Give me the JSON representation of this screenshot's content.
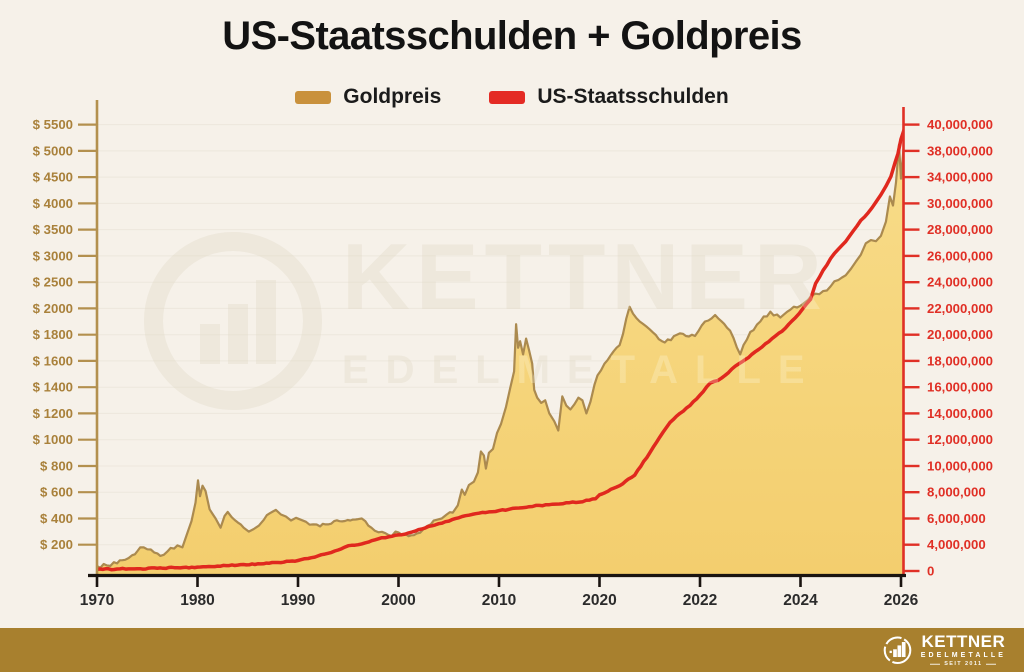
{
  "title": "US-Staatsschulden + Goldpreis",
  "palette": {
    "background": "#F6F1E9",
    "gold_accent": "#C9913C",
    "red_accent": "#E0281E",
    "footer_bar": "#A8802E"
  },
  "legend": [
    {
      "label": "Goldpreis",
      "color": "#C9913C"
    },
    {
      "label": "US-Staatsschulden",
      "color": "#E42B24"
    }
  ],
  "watermark": {
    "line1": "KETTNER",
    "line2": "EDELMETALLE"
  },
  "footer": {
    "brand": "KETTNER",
    "sub": "EDELMETALLE",
    "since": "SEIT 2011"
  },
  "chart_data": {
    "type": "area",
    "title": "US-Staatsschulden + Goldpreis",
    "grid": "faint-horizontal",
    "legend_position": "top-center",
    "x_axis": {
      "ticks": [
        "1970",
        "1980",
        "1990",
        "2000",
        "2010",
        "2020",
        "2022",
        "2024",
        "2026"
      ],
      "tick_years": [
        1970,
        1980,
        1990,
        2000,
        2010,
        2020,
        2022,
        2024,
        2026
      ],
      "label_color": "#2B2B2B"
    },
    "left_axis": {
      "color": "#A9813B",
      "tick_labels_top_to_bottom": [
        "$ 5500",
        "$ 5000",
        "$ 4500",
        "$ 4000",
        "$ 3500",
        "$ 3000",
        "$ 2500",
        "$ 2000",
        "$ 1800",
        "$ 1600",
        "$ 1400",
        "$ 1200",
        "$ 1000",
        "$ 800",
        "$ 600",
        "$ 400",
        "$ 200"
      ],
      "value_stops": [
        0,
        200,
        400,
        600,
        800,
        1000,
        1200,
        1400,
        1600,
        1800,
        2000,
        2500,
        3000,
        3500,
        4000,
        4500,
        5000,
        5500
      ]
    },
    "right_axis": {
      "color": "#E03026",
      "tick_labels_top_to_bottom": [
        "40,000,000",
        "38,000,000",
        "34,000,000",
        "30,000,000",
        "28,000,000",
        "26,000,000",
        "24,000,000",
        "22,000,000",
        "20,000,000",
        "18,000,000",
        "16,000,000",
        "14,000,000",
        "12,000,000",
        "10,000,000",
        "8,000,000",
        "6,000,000",
        "4,000,000",
        "0"
      ],
      "value_stops": [
        0,
        4000000,
        6000000,
        8000000,
        10000000,
        12000000,
        14000000,
        16000000,
        18000000,
        20000000,
        22000000,
        24000000,
        26000000,
        28000000,
        30000000,
        34000000,
        38000000,
        40000000
      ]
    },
    "series": [
      {
        "name": "Goldpreis",
        "axis": "left",
        "style": "area",
        "line_color": "#AB8A4F",
        "fill_top": "#F8DC89",
        "fill_bottom": "#F3CE6E",
        "points": [
          [
            1970,
            37
          ],
          [
            1971,
            42
          ],
          [
            1972,
            58
          ],
          [
            1972.8,
            85
          ],
          [
            1973.5,
            120
          ],
          [
            1974.3,
            180
          ],
          [
            1975,
            165
          ],
          [
            1975.7,
            140
          ],
          [
            1976.3,
            115
          ],
          [
            1977,
            148
          ],
          [
            1978,
            195
          ],
          [
            1978.5,
            180
          ],
          [
            1979,
            290
          ],
          [
            1979.4,
            380
          ],
          [
            1979.8,
            520
          ],
          [
            1980.05,
            690
          ],
          [
            1980.25,
            570
          ],
          [
            1980.5,
            650
          ],
          [
            1980.8,
            610
          ],
          [
            1981.2,
            470
          ],
          [
            1981.8,
            400
          ],
          [
            1982.3,
            330
          ],
          [
            1982.7,
            420
          ],
          [
            1983,
            450
          ],
          [
            1983.4,
            410
          ],
          [
            1984,
            370
          ],
          [
            1984.6,
            330
          ],
          [
            1985.1,
            300
          ],
          [
            1985.6,
            320
          ],
          [
            1986.1,
            345
          ],
          [
            1986.6,
            390
          ],
          [
            1987.2,
            440
          ],
          [
            1987.8,
            465
          ],
          [
            1988.3,
            430
          ],
          [
            1988.8,
            415
          ],
          [
            1989.3,
            385
          ],
          [
            1989.8,
            405
          ],
          [
            1990.3,
            390
          ],
          [
            1990.8,
            375
          ],
          [
            1991.5,
            355
          ],
          [
            1992.2,
            340
          ],
          [
            1993,
            355
          ],
          [
            1993.6,
            380
          ],
          [
            1994.4,
            378
          ],
          [
            1995.2,
            385
          ],
          [
            1996,
            395
          ],
          [
            1996.7,
            380
          ],
          [
            1997.3,
            330
          ],
          [
            1998,
            295
          ],
          [
            1998.7,
            288
          ],
          [
            1999.3,
            265
          ],
          [
            1999.7,
            300
          ],
          [
            2000.3,
            278
          ],
          [
            2001,
            265
          ],
          [
            2001.8,
            285
          ],
          [
            2002.5,
            320
          ],
          [
            2003.2,
            355
          ],
          [
            2003.8,
            390
          ],
          [
            2004.3,
            400
          ],
          [
            2004.8,
            430
          ],
          [
            2005.4,
            445
          ],
          [
            2005.9,
            500
          ],
          [
            2006.3,
            620
          ],
          [
            2006.6,
            580
          ],
          [
            2007,
            655
          ],
          [
            2007.5,
            680
          ],
          [
            2007.9,
            750
          ],
          [
            2008.2,
            910
          ],
          [
            2008.5,
            880
          ],
          [
            2008.7,
            780
          ],
          [
            2009,
            900
          ],
          [
            2009.4,
            930
          ],
          [
            2009.8,
            1050
          ],
          [
            2010.2,
            1120
          ],
          [
            2010.7,
            1250
          ],
          [
            2011.1,
            1390
          ],
          [
            2011.5,
            1520
          ],
          [
            2011.7,
            1880
          ],
          [
            2011.9,
            1700
          ],
          [
            2012.1,
            1750
          ],
          [
            2012.4,
            1650
          ],
          [
            2012.7,
            1770
          ],
          [
            2013,
            1680
          ],
          [
            2013.3,
            1580
          ],
          [
            2013.5,
            1380
          ],
          [
            2013.8,
            1320
          ],
          [
            2014.2,
            1280
          ],
          [
            2014.6,
            1300
          ],
          [
            2015,
            1200
          ],
          [
            2015.5,
            1140
          ],
          [
            2015.9,
            1070
          ],
          [
            2016.3,
            1330
          ],
          [
            2016.7,
            1260
          ],
          [
            2017.1,
            1230
          ],
          [
            2017.5,
            1270
          ],
          [
            2017.9,
            1320
          ],
          [
            2018.3,
            1300
          ],
          [
            2018.7,
            1200
          ],
          [
            2019.1,
            1290
          ],
          [
            2019.5,
            1420
          ],
          [
            2019.8,
            1490
          ],
          [
            2020.1,
            1580
          ],
          [
            2020.4,
            1720
          ],
          [
            2020.6,
            2030
          ],
          [
            2020.8,
            1900
          ],
          [
            2021,
            1840
          ],
          [
            2021.3,
            1740
          ],
          [
            2021.6,
            1810
          ],
          [
            2021.9,
            1790
          ],
          [
            2022.1,
            1900
          ],
          [
            2022.3,
            1950
          ],
          [
            2022.6,
            1830
          ],
          [
            2022.8,
            1650
          ],
          [
            2023,
            1820
          ],
          [
            2023.2,
            1900
          ],
          [
            2023.4,
            1975
          ],
          [
            2023.6,
            1930
          ],
          [
            2023.8,
            1990
          ],
          [
            2024,
            2050
          ],
          [
            2024.15,
            2160
          ],
          [
            2024.3,
            2280
          ],
          [
            2024.45,
            2330
          ],
          [
            2024.6,
            2420
          ],
          [
            2024.75,
            2540
          ],
          [
            2024.9,
            2630
          ],
          [
            2025,
            2750
          ],
          [
            2025.1,
            2890
          ],
          [
            2025.2,
            3020
          ],
          [
            2025.3,
            3240
          ],
          [
            2025.4,
            3300
          ],
          [
            2025.5,
            3280
          ],
          [
            2025.6,
            3380
          ],
          [
            2025.7,
            3650
          ],
          [
            2025.78,
            4130
          ],
          [
            2025.84,
            3960
          ],
          [
            2025.9,
            4400
          ],
          [
            2025.96,
            5120
          ],
          [
            2026,
            4470
          ],
          [
            2026.06,
            5150
          ]
        ]
      },
      {
        "name": "US-Staatsschulden",
        "axis": "right",
        "style": "line",
        "line_color": "#E0281E",
        "points": [
          [
            1970,
            250000
          ],
          [
            1972,
            300000
          ],
          [
            1974,
            350000
          ],
          [
            1976,
            420000
          ],
          [
            1978,
            500000
          ],
          [
            1980,
            600000
          ],
          [
            1982,
            750000
          ],
          [
            1984,
            900000
          ],
          [
            1986,
            1100000
          ],
          [
            1988,
            1300000
          ],
          [
            1990,
            1600000
          ],
          [
            1991,
            1900000
          ],
          [
            1992,
            2300000
          ],
          [
            1993,
            2700000
          ],
          [
            1994,
            3200000
          ],
          [
            1995,
            3850000
          ],
          [
            1996,
            4000000
          ],
          [
            1997,
            4200000
          ],
          [
            1998,
            4450000
          ],
          [
            1999,
            4600000
          ],
          [
            2000,
            4750000
          ],
          [
            2001,
            4900000
          ],
          [
            2002,
            5150000
          ],
          [
            2003,
            5400000
          ],
          [
            2004,
            5600000
          ],
          [
            2005,
            5800000
          ],
          [
            2006,
            6050000
          ],
          [
            2007,
            6250000
          ],
          [
            2008,
            6400000
          ],
          [
            2009,
            6500000
          ],
          [
            2010,
            6600000
          ],
          [
            2011,
            6700000
          ],
          [
            2012,
            6800000
          ],
          [
            2013,
            6900000
          ],
          [
            2014,
            7000000
          ],
          [
            2015,
            7050000
          ],
          [
            2016,
            7100000
          ],
          [
            2017,
            7200000
          ],
          [
            2018,
            7250000
          ],
          [
            2019,
            7400000
          ],
          [
            2019.6,
            7500000
          ],
          [
            2020,
            7800000
          ],
          [
            2020.4,
            8500000
          ],
          [
            2020.7,
            9300000
          ],
          [
            2021,
            11000000
          ],
          [
            2021.2,
            12200000
          ],
          [
            2021.4,
            13300000
          ],
          [
            2021.6,
            14000000
          ],
          [
            2021.8,
            14600000
          ],
          [
            2022,
            15400000
          ],
          [
            2022.2,
            16300000
          ],
          [
            2022.35,
            16500000
          ],
          [
            2022.5,
            16900000
          ],
          [
            2022.7,
            17600000
          ],
          [
            2022.9,
            18100000
          ],
          [
            2023.1,
            18700000
          ],
          [
            2023.3,
            19300000
          ],
          [
            2023.5,
            19900000
          ],
          [
            2023.7,
            20500000
          ],
          [
            2023.9,
            21300000
          ],
          [
            2024.05,
            22000000
          ],
          [
            2024.2,
            22700000
          ],
          [
            2024.3,
            23900000
          ],
          [
            2024.45,
            24900000
          ],
          [
            2024.6,
            25800000
          ],
          [
            2024.75,
            26500000
          ],
          [
            2024.9,
            27100000
          ],
          [
            2025.05,
            27900000
          ],
          [
            2025.2,
            28700000
          ],
          [
            2025.35,
            29300000
          ],
          [
            2025.5,
            30200000
          ],
          [
            2025.6,
            31300000
          ],
          [
            2025.7,
            32600000
          ],
          [
            2025.8,
            34100000
          ],
          [
            2025.88,
            36200000
          ],
          [
            2025.94,
            37600000
          ],
          [
            2026,
            38900000
          ],
          [
            2026.06,
            39600000
          ]
        ]
      }
    ]
  }
}
